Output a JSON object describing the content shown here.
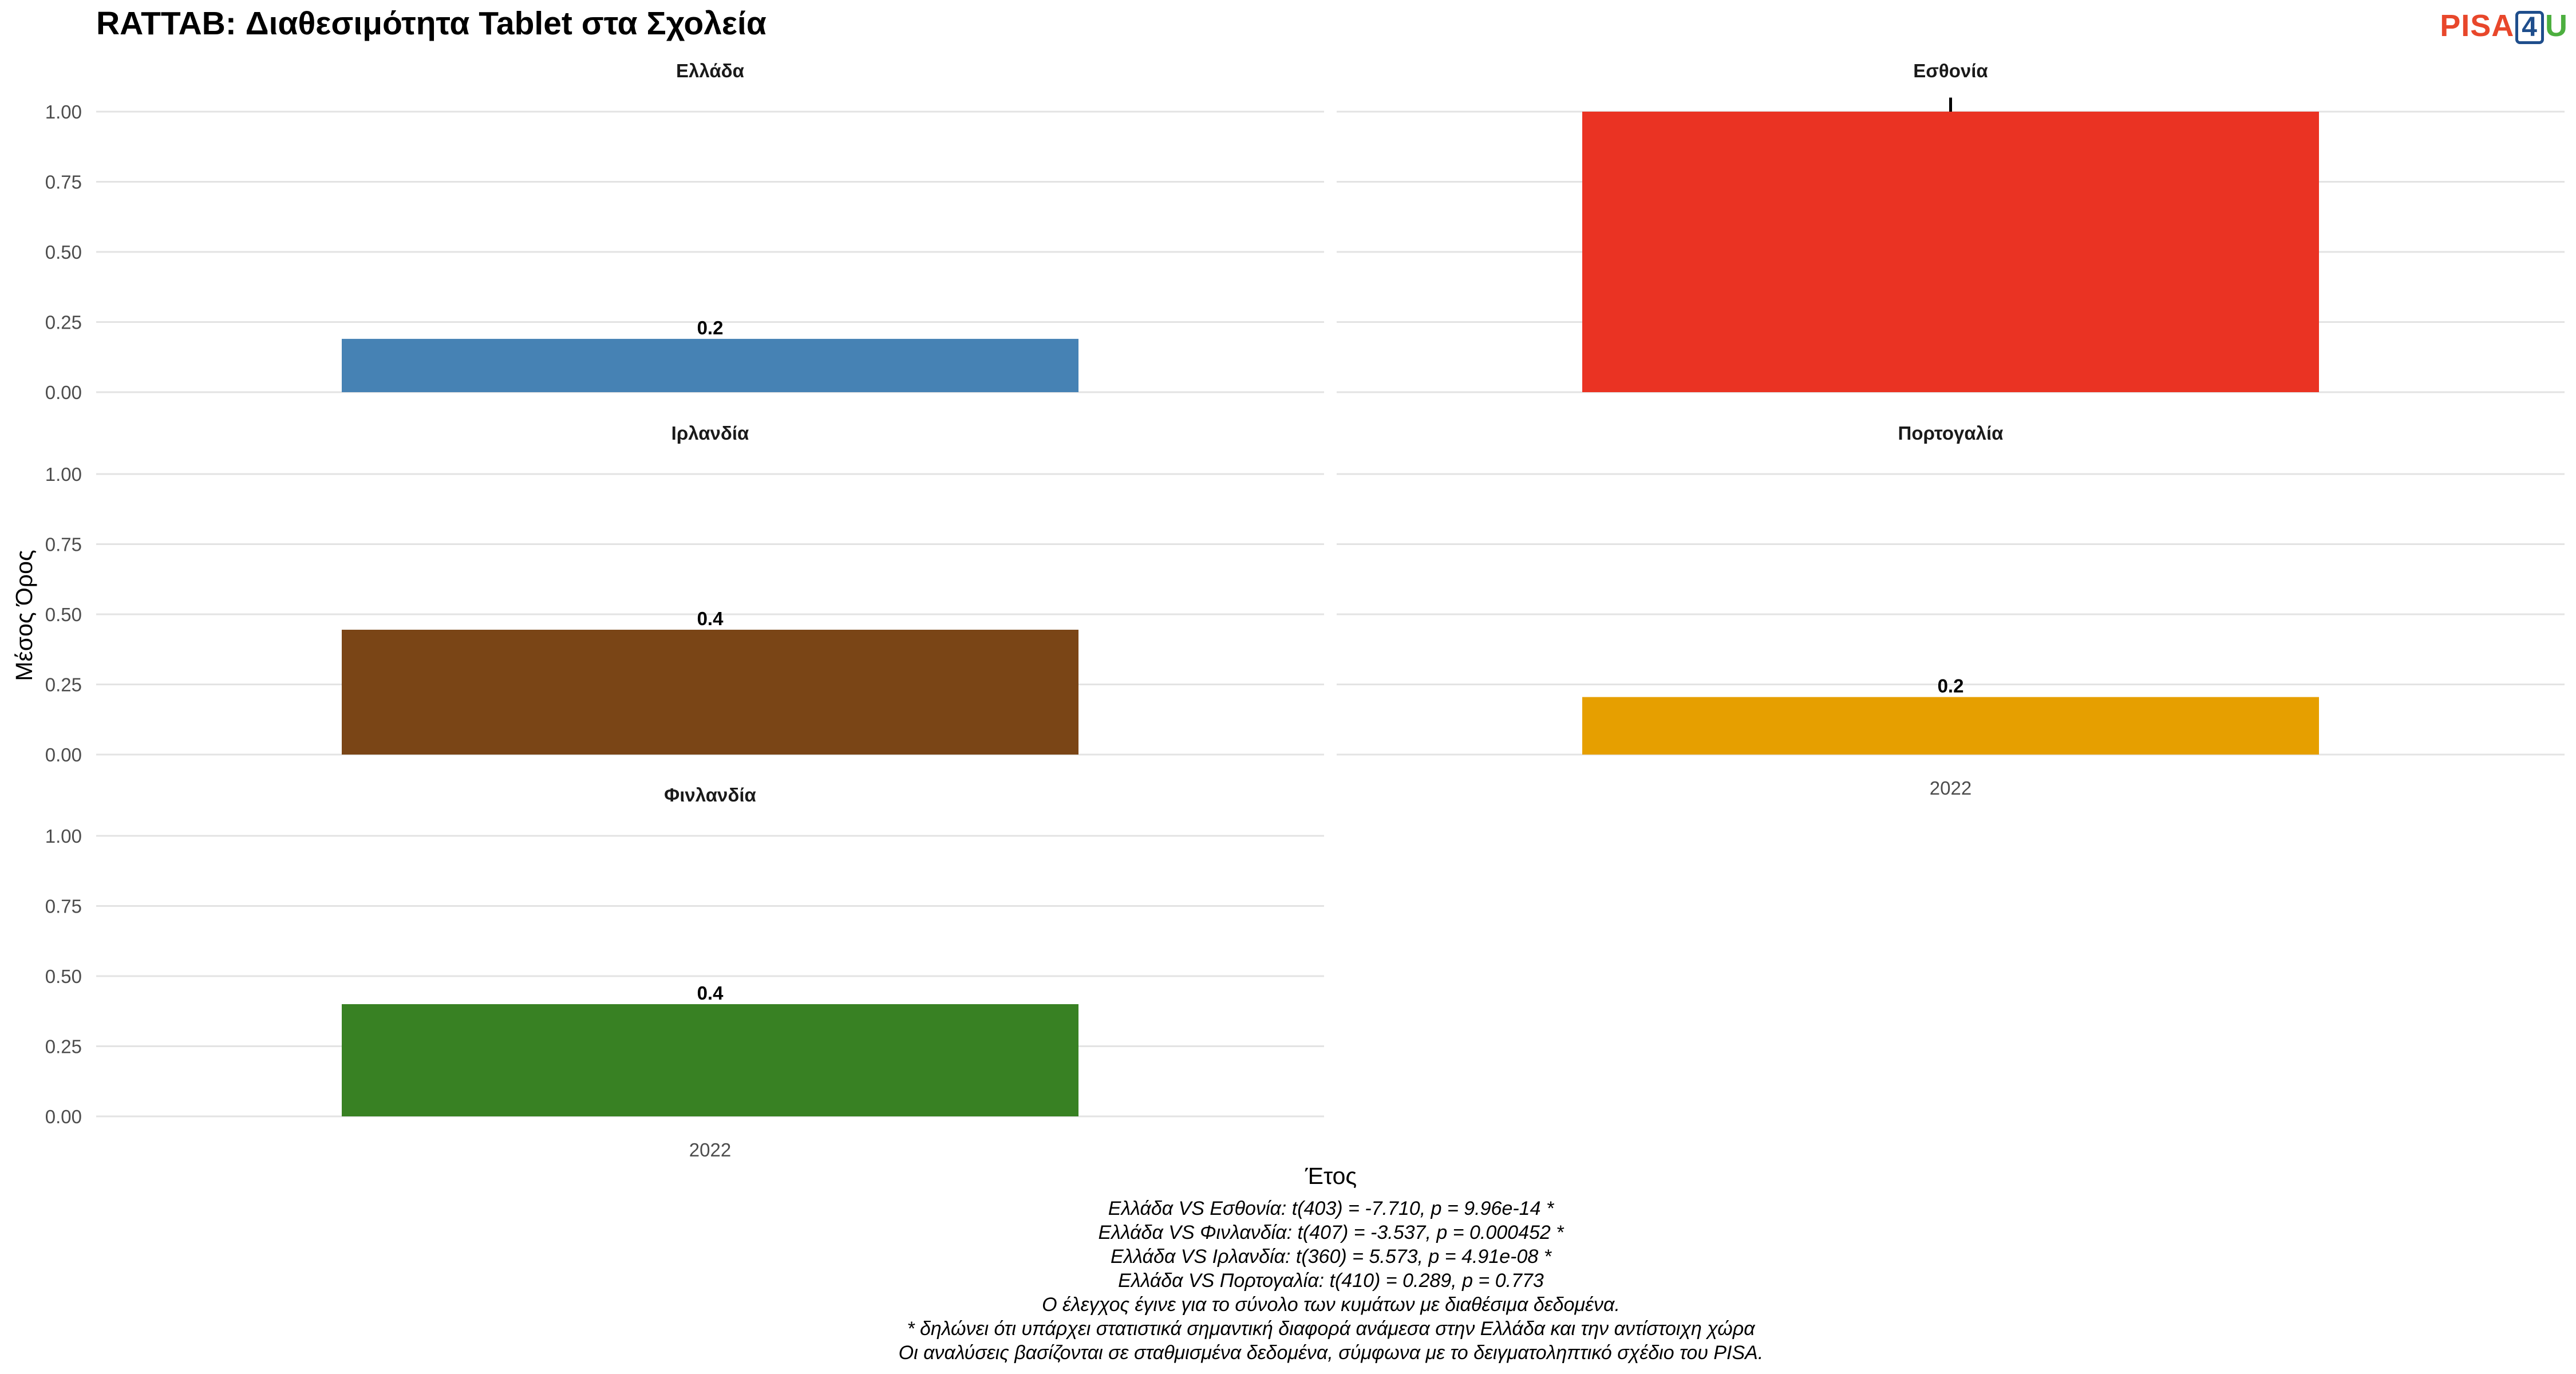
{
  "title": "RATTAB: Διαθεσιμότητα Tablet στα Σχολεία",
  "logo": {
    "part1": "PISA",
    "part2": "4",
    "part3": "U"
  },
  "colors": {
    "Ελλάδα": "#4682b4",
    "Εσθονία": "#ea3323",
    "Ιρλανδία": "#7a4516",
    "Πορτογαλία": "#e69f00",
    "Φινλανδία": "#388123"
  },
  "chart_data": {
    "type": "bar",
    "xlabel": "Έτος",
    "ylabel": "Μέσος Όρος",
    "ylim": [
      0,
      1
    ],
    "yticks": [
      "0.00",
      "0.25",
      "0.50",
      "0.75",
      "1.00"
    ],
    "categories": [
      "2022"
    ],
    "grid": true,
    "panels": [
      {
        "name": "Ελλάδα",
        "value": 0.19,
        "label": "0.2",
        "color": "#4682b4"
      },
      {
        "name": "Εσθονία",
        "value": 1.0,
        "label": "",
        "color": "#ea3323",
        "error": [
          1.0,
          1.05
        ]
      },
      {
        "name": "Ιρλανδία",
        "value": 0.445,
        "label": "0.4",
        "color": "#7a4516"
      },
      {
        "name": "Πορτογαλία",
        "value": 0.205,
        "label": "0.2",
        "color": "#e69f00"
      },
      {
        "name": "Φινλανδία",
        "value": 0.4,
        "label": "0.4",
        "color": "#388123"
      }
    ]
  },
  "notes": [
    "Ελλάδα VS Εσθονία: t(403) = -7.710, p = 9.96e-14 *",
    "Ελλάδα VS Φινλανδία: t(407) = -3.537, p = 0.000452 *",
    "Ελλάδα VS Ιρλανδία: t(360) = 5.573, p = 4.91e-08 *",
    "Ελλάδα VS Πορτογαλία: t(410) = 0.289, p = 0.773",
    "Ο έλεγχος έγινε για το σύνολο των κυμάτων με διαθέσιμα δεδομένα.",
    "* δηλώνει ότι υπάρχει στατιστικά σημαντική διαφορά ανάμεσα στην Ελλάδα και την αντίστοιχη χώρα",
    "Οι αναλύσεις βασίζονται σε σταθμισμένα δεδομένα, σύμφωνα με το δειγματοληπτικό σχέδιο του PISA."
  ]
}
